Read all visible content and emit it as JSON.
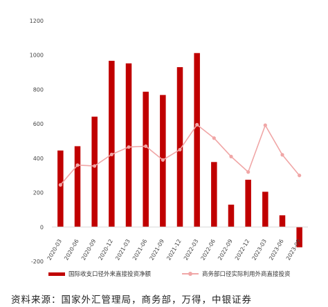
{
  "chart_data": {
    "type": "bar",
    "categories": [
      "2020-03",
      "2020-06",
      "2020-09",
      "2020-12",
      "2021-03",
      "2021-06",
      "2021-09",
      "2021-12",
      "2022-03",
      "2022-06",
      "2022-09",
      "2022-12",
      "2023-03",
      "2023-06",
      "2023-09"
    ],
    "series": [
      {
        "name": "国际收支口径外来直接投资净额",
        "type": "bar",
        "color": "#c00000",
        "values": [
          445,
          470,
          642,
          967,
          952,
          787,
          768,
          930,
          1012,
          378,
          130,
          275,
          205,
          68,
          -118
        ]
      },
      {
        "name": "商务部口径实际利用外商直接投资",
        "type": "line",
        "color": "#f0a6a6",
        "values": [
          245,
          360,
          355,
          422,
          465,
          470,
          390,
          450,
          595,
          517,
          410,
          320,
          592,
          420,
          300
        ]
      }
    ],
    "yticks": [
      -200,
      0,
      200,
      400,
      600,
      800,
      1000,
      1200
    ],
    "ylim": [
      -200,
      1200
    ],
    "grid": false,
    "legend_position": "bottom",
    "source_note": "资料来源：国家外汇管理局，商务部，万得，中银证券"
  }
}
